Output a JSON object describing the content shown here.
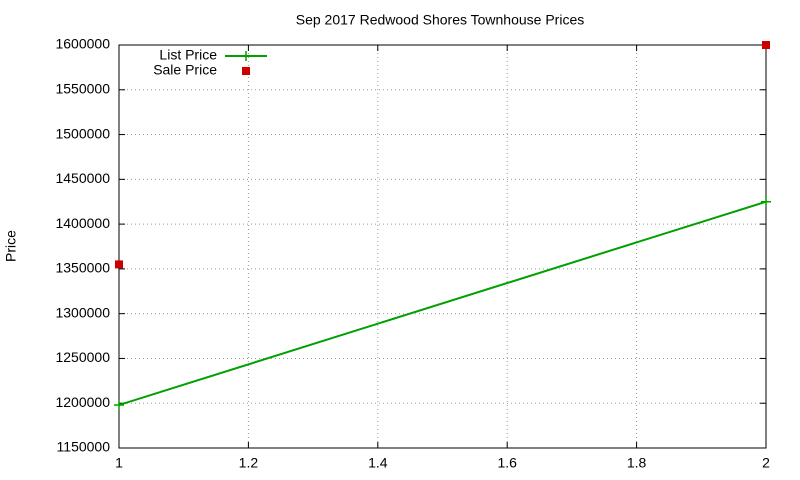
{
  "chart_data": {
    "type": "line",
    "title": "Sep 2017 Redwood Shores Townhouse Prices",
    "y_label": "Price",
    "x": [
      1,
      2
    ],
    "series": [
      {
        "name": "List Price",
        "color": "#00a000",
        "mode": "linespoints",
        "values": [
          1198000,
          1425000
        ]
      },
      {
        "name": "Sale Price",
        "color": "#cc0000",
        "mode": "points",
        "values": [
          1355000,
          1600000
        ]
      }
    ],
    "xlim": [
      1,
      2
    ],
    "xticks": [
      1,
      1.2,
      1.4,
      1.6,
      1.8,
      2
    ],
    "ylim": [
      1150000,
      1600000
    ],
    "yticks": [
      1150000,
      1200000,
      1250000,
      1300000,
      1350000,
      1400000,
      1450000,
      1500000,
      1550000,
      1600000
    ],
    "grid": true,
    "legend": "top-left"
  }
}
